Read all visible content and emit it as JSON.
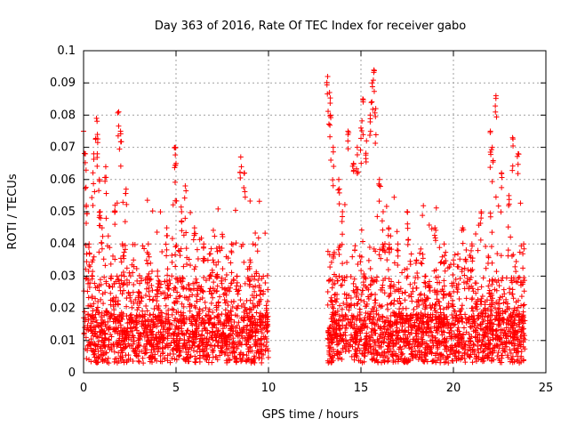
{
  "chart_data": {
    "type": "scatter",
    "title": "Day 363 of 2016, Rate Of TEC Index for receiver gabo",
    "xlabel": "GPS time / hours",
    "ylabel": "ROTI / TECUs",
    "xlim": [
      0,
      25
    ],
    "ylim": [
      0,
      0.1
    ],
    "xticks": [
      "0",
      "5",
      "10",
      "15",
      "20",
      "25"
    ],
    "yticks": [
      "0",
      "0.01",
      "0.02",
      "0.03",
      "0.04",
      "0.05",
      "0.06",
      "0.07",
      "0.08",
      "0.09",
      "0.1"
    ],
    "grid": true,
    "marker": "+",
    "color": "#ff0000",
    "series": [
      {
        "x": [
          0.0,
          0.1,
          0.15,
          0.3,
          0.5,
          0.55,
          0.7,
          0.75,
          0.85,
          0.9,
          1.0,
          1.2,
          1.5,
          1.7,
          1.9,
          2.0,
          2.1,
          2.3,
          2.7,
          3.0,
          3.5,
          4.0,
          4.5,
          4.95,
          5.0,
          5.3,
          5.5,
          6.0,
          6.5,
          7.0,
          7.2,
          7.5,
          8.0,
          8.3,
          8.5,
          8.7,
          9.0,
          9.5,
          9.9,
          13.2,
          13.3,
          13.35,
          13.5,
          13.8,
          14.0,
          14.3,
          14.6,
          14.8,
          15.0,
          15.1,
          15.3,
          15.5,
          15.6,
          15.7,
          15.8,
          16.0,
          16.2,
          16.5,
          17.0,
          17.5,
          18.0,
          18.5,
          19.0,
          19.5,
          20.0,
          20.5,
          21.0,
          21.5,
          22.0,
          22.1,
          22.3,
          22.6,
          23.0,
          23.2,
          23.5,
          23.8
        ],
        "y": [
          0.075,
          0.068,
          0.052,
          0.04,
          0.035,
          0.068,
          0.079,
          0.074,
          0.06,
          0.05,
          0.045,
          0.064,
          0.03,
          0.052,
          0.081,
          0.075,
          0.04,
          0.057,
          0.035,
          0.025,
          0.04,
          0.03,
          0.045,
          0.07,
          0.065,
          0.05,
          0.058,
          0.045,
          0.04,
          0.035,
          0.03,
          0.043,
          0.04,
          0.03,
          0.067,
          0.062,
          0.035,
          0.03,
          0.02,
          0.092,
          0.087,
          0.08,
          0.07,
          0.06,
          0.05,
          0.075,
          0.065,
          0.07,
          0.076,
          0.085,
          0.072,
          0.08,
          0.09,
          0.094,
          0.082,
          0.06,
          0.05,
          0.045,
          0.04,
          0.05,
          0.035,
          0.03,
          0.045,
          0.04,
          0.035,
          0.045,
          0.04,
          0.05,
          0.075,
          0.07,
          0.086,
          0.062,
          0.055,
          0.073,
          0.068,
          0.04
        ]
      }
    ]
  }
}
